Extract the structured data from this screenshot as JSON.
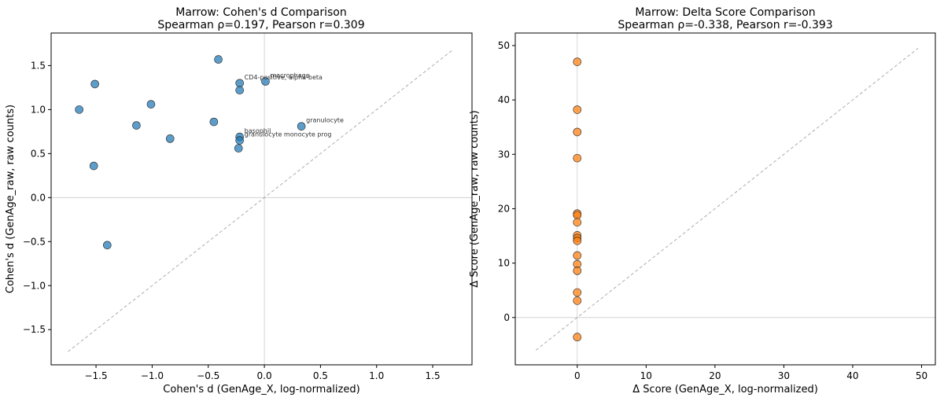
{
  "chart_data": [
    {
      "type": "scatter",
      "title": "Marrow: Cohen's d Comparison",
      "subtitle": "Spearman ρ=0.197, Pearson r=0.309",
      "xlabel": "Cohen's d (GenAge_X, log-normalized)",
      "ylabel": "Cohen's d (GenAge_raw, raw counts)",
      "xlim": [
        -1.9,
        1.85
      ],
      "ylim": [
        -1.9,
        1.87
      ],
      "xticks": [
        -1.5,
        -1.0,
        -0.5,
        0.0,
        0.5,
        1.0,
        1.5
      ],
      "yticks": [
        -1.5,
        -1.0,
        -0.5,
        0.0,
        0.5,
        1.0,
        1.5
      ],
      "xtick_labels": [
        "−1.5",
        "−1.0",
        "−0.5",
        "0.0",
        "0.5",
        "1.0",
        "1.5"
      ],
      "ytick_labels": [
        "−1.5",
        "−1.0",
        "−0.5",
        "0.0",
        "0.5",
        "1.0",
        "1.5"
      ],
      "color": "#1f77b4",
      "diagonal": [
        -1.75,
        1.68
      ],
      "points": [
        {
          "x": -1.65,
          "y": 1.0
        },
        {
          "x": -1.51,
          "y": 1.29
        },
        {
          "x": -1.52,
          "y": 0.36
        },
        {
          "x": -1.4,
          "y": -0.54
        },
        {
          "x": -1.14,
          "y": 0.82
        },
        {
          "x": -1.01,
          "y": 1.06
        },
        {
          "x": -0.84,
          "y": 0.67
        },
        {
          "x": -0.45,
          "y": 0.86
        },
        {
          "x": -0.41,
          "y": 1.57
        },
        {
          "x": -0.22,
          "y": 1.3
        },
        {
          "x": -0.22,
          "y": 1.22
        },
        {
          "x": -0.22,
          "y": 0.69
        },
        {
          "x": -0.22,
          "y": 0.65
        },
        {
          "x": -0.23,
          "y": 0.56
        },
        {
          "x": 0.01,
          "y": 1.32
        },
        {
          "x": 0.33,
          "y": 0.81
        }
      ],
      "annotations": [
        {
          "text": "macrophage",
          "x": 0.01,
          "y": 1.32
        },
        {
          "text": "CD4-positive, alpha-beta",
          "x": -0.22,
          "y": 1.3
        },
        {
          "text": "granulocyte",
          "x": 0.33,
          "y": 0.81
        },
        {
          "text": "basophil",
          "x": -0.22,
          "y": 0.69
        },
        {
          "text": "granulocyte monocyte prog",
          "x": -0.22,
          "y": 0.65
        }
      ]
    },
    {
      "type": "scatter",
      "title": "Marrow: Delta Score Comparison",
      "subtitle": "Spearman ρ=-0.338, Pearson r=-0.393",
      "xlabel": "Δ Score (GenAge_X, log-normalized)",
      "ylabel": "Δ Score (GenAge_raw, raw counts)",
      "xlim": [
        -9,
        52
      ],
      "ylim": [
        -8.7,
        52.3
      ],
      "xticks": [
        0,
        10,
        20,
        30,
        40,
        50
      ],
      "yticks": [
        0,
        10,
        20,
        30,
        40,
        50
      ],
      "xtick_labels": [
        "0",
        "10",
        "20",
        "30",
        "40",
        "50"
      ],
      "ytick_labels": [
        "0",
        "10",
        "20",
        "30",
        "40",
        "50"
      ],
      "color": "#ff7f0e",
      "diagonal": [
        -6,
        49.5
      ],
      "points": [
        {
          "x": 0,
          "y": 47.0
        },
        {
          "x": 0,
          "y": 38.2
        },
        {
          "x": 0,
          "y": 34.1
        },
        {
          "x": 0,
          "y": 29.3
        },
        {
          "x": 0,
          "y": 19.1
        },
        {
          "x": 0,
          "y": 18.8
        },
        {
          "x": 0,
          "y": 17.5
        },
        {
          "x": 0,
          "y": 15.1
        },
        {
          "x": 0,
          "y": 14.6
        },
        {
          "x": 0,
          "y": 14.1
        },
        {
          "x": 0,
          "y": 11.4
        },
        {
          "x": 0,
          "y": 9.8
        },
        {
          "x": 0,
          "y": 8.6
        },
        {
          "x": 0,
          "y": 4.6
        },
        {
          "x": 0,
          "y": 3.1
        },
        {
          "x": 0,
          "y": -3.6
        }
      ],
      "annotations": []
    }
  ]
}
